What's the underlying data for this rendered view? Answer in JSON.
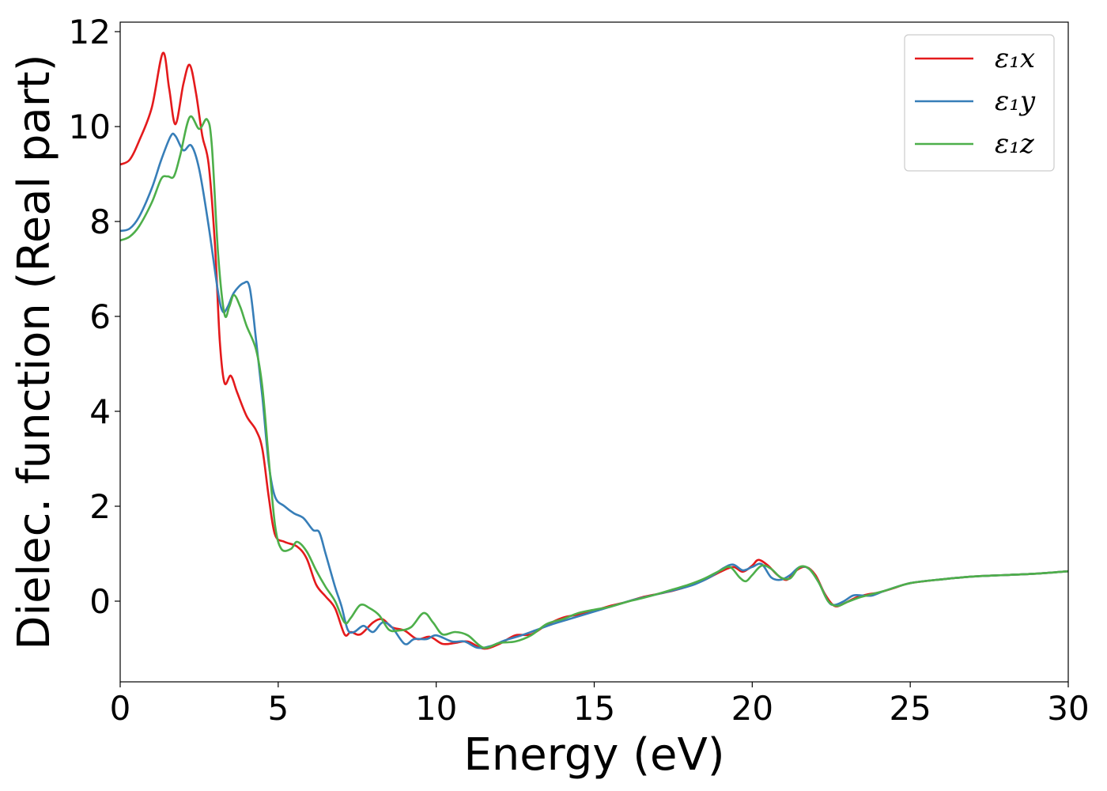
{
  "chart_data": {
    "type": "line",
    "title": "",
    "xlabel": "Energy (eV)",
    "ylabel": "Dielec. function (Real part)",
    "xlim": [
      0,
      30
    ],
    "ylim": [
      -1.7,
      12.2
    ],
    "xticks": [
      0,
      5,
      10,
      15,
      20,
      25,
      30
    ],
    "yticks": [
      0,
      2,
      4,
      6,
      8,
      10,
      12
    ],
    "legend_position": "upper-right",
    "grid": false,
    "series": [
      {
        "name": "ε₁x",
        "color": "#e41a1c",
        "points": [
          [
            0,
            9.2
          ],
          [
            0.3,
            9.3
          ],
          [
            0.6,
            9.7
          ],
          [
            1.0,
            10.4
          ],
          [
            1.35,
            11.55
          ],
          [
            1.55,
            10.8
          ],
          [
            1.75,
            10.05
          ],
          [
            2.0,
            10.9
          ],
          [
            2.2,
            11.3
          ],
          [
            2.4,
            10.7
          ],
          [
            2.6,
            9.8
          ],
          [
            2.8,
            9.2
          ],
          [
            3.0,
            7.5
          ],
          [
            3.15,
            5.5
          ],
          [
            3.3,
            4.6
          ],
          [
            3.5,
            4.75
          ],
          [
            3.7,
            4.4
          ],
          [
            4.0,
            3.9
          ],
          [
            4.3,
            3.6
          ],
          [
            4.5,
            3.2
          ],
          [
            4.7,
            2.2
          ],
          [
            4.9,
            1.4
          ],
          [
            5.2,
            1.25
          ],
          [
            5.6,
            1.15
          ],
          [
            5.9,
            0.9
          ],
          [
            6.2,
            0.35
          ],
          [
            6.5,
            0.1
          ],
          [
            6.8,
            -0.15
          ],
          [
            7.1,
            -0.7
          ],
          [
            7.3,
            -0.65
          ],
          [
            7.6,
            -0.7
          ],
          [
            8.0,
            -0.45
          ],
          [
            8.3,
            -0.38
          ],
          [
            8.6,
            -0.55
          ],
          [
            9.0,
            -0.62
          ],
          [
            9.4,
            -0.8
          ],
          [
            9.8,
            -0.75
          ],
          [
            10.2,
            -0.9
          ],
          [
            10.6,
            -0.88
          ],
          [
            11.0,
            -0.85
          ],
          [
            11.5,
            -1.0
          ],
          [
            12.0,
            -0.9
          ],
          [
            12.5,
            -0.72
          ],
          [
            13.0,
            -0.7
          ],
          [
            13.5,
            -0.5
          ],
          [
            14.0,
            -0.35
          ],
          [
            14.5,
            -0.28
          ],
          [
            15.0,
            -0.2
          ],
          [
            15.5,
            -0.1
          ],
          [
            16.0,
            -0.02
          ],
          [
            16.5,
            0.08
          ],
          [
            17.0,
            0.15
          ],
          [
            17.5,
            0.22
          ],
          [
            18.0,
            0.32
          ],
          [
            18.5,
            0.45
          ],
          [
            19.0,
            0.62
          ],
          [
            19.4,
            0.72
          ],
          [
            19.7,
            0.62
          ],
          [
            20.0,
            0.75
          ],
          [
            20.2,
            0.87
          ],
          [
            20.5,
            0.75
          ],
          [
            20.8,
            0.55
          ],
          [
            21.1,
            0.45
          ],
          [
            21.4,
            0.65
          ],
          [
            21.7,
            0.72
          ],
          [
            22.0,
            0.55
          ],
          [
            22.3,
            0.15
          ],
          [
            22.6,
            -0.1
          ],
          [
            22.9,
            -0.05
          ],
          [
            23.3,
            0.08
          ],
          [
            23.7,
            0.15
          ],
          [
            24.0,
            0.18
          ],
          [
            24.5,
            0.28
          ],
          [
            25.0,
            0.38
          ],
          [
            26.0,
            0.46
          ],
          [
            27.0,
            0.52
          ],
          [
            28.0,
            0.55
          ],
          [
            29.0,
            0.58
          ],
          [
            30.0,
            0.63
          ]
        ]
      },
      {
        "name": "ε₁y",
        "color": "#377eb8",
        "points": [
          [
            0,
            7.8
          ],
          [
            0.3,
            7.85
          ],
          [
            0.6,
            8.1
          ],
          [
            1.0,
            8.7
          ],
          [
            1.3,
            9.3
          ],
          [
            1.6,
            9.8
          ],
          [
            1.75,
            9.8
          ],
          [
            2.0,
            9.5
          ],
          [
            2.25,
            9.6
          ],
          [
            2.5,
            9.1
          ],
          [
            2.8,
            7.9
          ],
          [
            3.1,
            6.5
          ],
          [
            3.25,
            6.1
          ],
          [
            3.4,
            6.2
          ],
          [
            3.6,
            6.5
          ],
          [
            3.9,
            6.7
          ],
          [
            4.1,
            6.6
          ],
          [
            4.3,
            5.5
          ],
          [
            4.5,
            4.3
          ],
          [
            4.7,
            2.9
          ],
          [
            4.9,
            2.2
          ],
          [
            5.2,
            2.0
          ],
          [
            5.5,
            1.85
          ],
          [
            5.8,
            1.75
          ],
          [
            6.1,
            1.5
          ],
          [
            6.3,
            1.45
          ],
          [
            6.5,
            1.0
          ],
          [
            6.8,
            0.3
          ],
          [
            7.0,
            -0.1
          ],
          [
            7.2,
            -0.6
          ],
          [
            7.4,
            -0.65
          ],
          [
            7.7,
            -0.52
          ],
          [
            8.0,
            -0.65
          ],
          [
            8.3,
            -0.45
          ],
          [
            8.6,
            -0.55
          ],
          [
            9.0,
            -0.9
          ],
          [
            9.3,
            -0.8
          ],
          [
            9.7,
            -0.8
          ],
          [
            10.0,
            -0.72
          ],
          [
            10.5,
            -0.85
          ],
          [
            10.9,
            -0.85
          ],
          [
            11.3,
            -0.98
          ],
          [
            11.7,
            -0.95
          ],
          [
            12.2,
            -0.82
          ],
          [
            12.7,
            -0.72
          ],
          [
            13.2,
            -0.6
          ],
          [
            13.7,
            -0.48
          ],
          [
            14.2,
            -0.38
          ],
          [
            14.7,
            -0.28
          ],
          [
            15.2,
            -0.18
          ],
          [
            15.7,
            -0.08
          ],
          [
            16.2,
            0.02
          ],
          [
            16.7,
            0.1
          ],
          [
            17.2,
            0.18
          ],
          [
            17.7,
            0.26
          ],
          [
            18.2,
            0.36
          ],
          [
            18.7,
            0.52
          ],
          [
            19.1,
            0.7
          ],
          [
            19.4,
            0.77
          ],
          [
            19.7,
            0.65
          ],
          [
            20.0,
            0.72
          ],
          [
            20.3,
            0.78
          ],
          [
            20.6,
            0.5
          ],
          [
            20.9,
            0.45
          ],
          [
            21.2,
            0.55
          ],
          [
            21.5,
            0.72
          ],
          [
            21.8,
            0.68
          ],
          [
            22.1,
            0.4
          ],
          [
            22.4,
            0.0
          ],
          [
            22.6,
            -0.08
          ],
          [
            22.9,
            0.0
          ],
          [
            23.2,
            0.12
          ],
          [
            23.5,
            0.12
          ],
          [
            23.8,
            0.12
          ],
          [
            24.2,
            0.22
          ],
          [
            25.0,
            0.38
          ],
          [
            26.0,
            0.46
          ],
          [
            27.0,
            0.52
          ],
          [
            28.0,
            0.55
          ],
          [
            29.0,
            0.58
          ],
          [
            30.0,
            0.63
          ]
        ]
      },
      {
        "name": "ε₁z",
        "color": "#4daf4a",
        "points": [
          [
            0,
            7.6
          ],
          [
            0.3,
            7.68
          ],
          [
            0.6,
            7.9
          ],
          [
            1.0,
            8.4
          ],
          [
            1.3,
            8.9
          ],
          [
            1.5,
            8.95
          ],
          [
            1.7,
            8.95
          ],
          [
            1.9,
            9.4
          ],
          [
            2.2,
            10.2
          ],
          [
            2.5,
            9.95
          ],
          [
            2.75,
            10.15
          ],
          [
            2.9,
            9.6
          ],
          [
            3.1,
            7.3
          ],
          [
            3.3,
            6.05
          ],
          [
            3.45,
            6.2
          ],
          [
            3.6,
            6.45
          ],
          [
            3.8,
            6.2
          ],
          [
            4.0,
            5.8
          ],
          [
            4.3,
            5.3
          ],
          [
            4.5,
            4.5
          ],
          [
            4.7,
            3.0
          ],
          [
            4.9,
            1.6
          ],
          [
            5.1,
            1.1
          ],
          [
            5.4,
            1.1
          ],
          [
            5.6,
            1.25
          ],
          [
            5.9,
            1.05
          ],
          [
            6.2,
            0.65
          ],
          [
            6.5,
            0.3
          ],
          [
            6.8,
            0.0
          ],
          [
            7.1,
            -0.45
          ],
          [
            7.3,
            -0.35
          ],
          [
            7.6,
            -0.08
          ],
          [
            7.9,
            -0.15
          ],
          [
            8.2,
            -0.3
          ],
          [
            8.5,
            -0.6
          ],
          [
            8.8,
            -0.62
          ],
          [
            9.2,
            -0.55
          ],
          [
            9.6,
            -0.25
          ],
          [
            9.9,
            -0.45
          ],
          [
            10.2,
            -0.7
          ],
          [
            10.6,
            -0.65
          ],
          [
            11.0,
            -0.72
          ],
          [
            11.5,
            -0.98
          ],
          [
            12.0,
            -0.88
          ],
          [
            12.5,
            -0.85
          ],
          [
            13.0,
            -0.72
          ],
          [
            13.5,
            -0.48
          ],
          [
            14.0,
            -0.38
          ],
          [
            14.5,
            -0.25
          ],
          [
            15.0,
            -0.18
          ],
          [
            15.5,
            -0.12
          ],
          [
            16.0,
            -0.02
          ],
          [
            16.5,
            0.06
          ],
          [
            17.0,
            0.15
          ],
          [
            17.5,
            0.25
          ],
          [
            18.0,
            0.35
          ],
          [
            18.5,
            0.48
          ],
          [
            19.0,
            0.65
          ],
          [
            19.3,
            0.72
          ],
          [
            19.6,
            0.5
          ],
          [
            19.8,
            0.42
          ],
          [
            20.0,
            0.55
          ],
          [
            20.3,
            0.75
          ],
          [
            20.6,
            0.68
          ],
          [
            20.9,
            0.5
          ],
          [
            21.2,
            0.48
          ],
          [
            21.5,
            0.72
          ],
          [
            21.8,
            0.68
          ],
          [
            22.1,
            0.4
          ],
          [
            22.4,
            0.0
          ],
          [
            22.7,
            -0.1
          ],
          [
            23.0,
            -0.02
          ],
          [
            23.4,
            0.08
          ],
          [
            23.8,
            0.15
          ],
          [
            24.2,
            0.22
          ],
          [
            25.0,
            0.38
          ],
          [
            26.0,
            0.46
          ],
          [
            27.0,
            0.52
          ],
          [
            28.0,
            0.55
          ],
          [
            29.0,
            0.58
          ],
          [
            30.0,
            0.63
          ]
        ]
      }
    ]
  }
}
